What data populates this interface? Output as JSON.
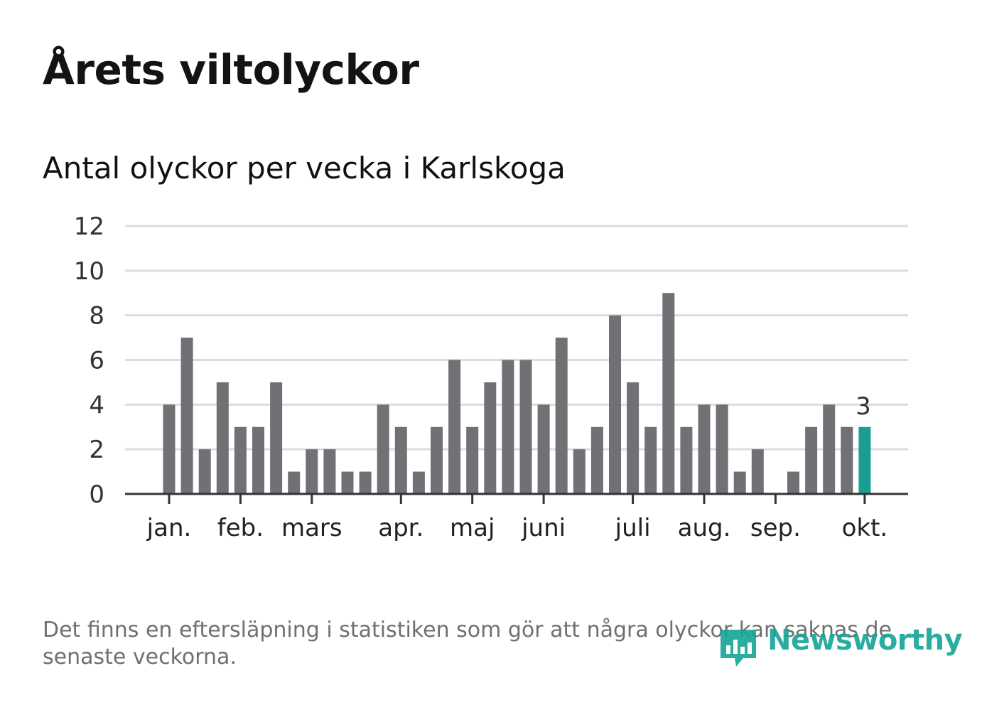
{
  "header": {
    "title": "Årets viltolyckor",
    "subtitle": "Antal olyckor per vecka i Karlskoga"
  },
  "footer": {
    "note": "Det finns en eftersläpning i statistiken som gör att några olyckor kan saknas de senaste veckorna.",
    "logo_text": "Newsworthy"
  },
  "colors": {
    "bar": "#707075",
    "highlight": "#1a9e94",
    "grid": "#dcdcdc",
    "axis": "#333333",
    "logo": "#14a596"
  },
  "chart_data": {
    "type": "bar",
    "title": "Antal olyckor per vecka i Karlskoga",
    "xlabel": "",
    "ylabel": "",
    "ylim": [
      0,
      12
    ],
    "yticks": [
      0,
      2,
      4,
      6,
      8,
      10,
      12
    ],
    "grid": true,
    "weeks": [
      1,
      2,
      3,
      4,
      5,
      6,
      7,
      8,
      9,
      10,
      11,
      12,
      13,
      14,
      15,
      16,
      17,
      18,
      19,
      20,
      21,
      22,
      23,
      24,
      25,
      26,
      27,
      28,
      29,
      30,
      31,
      32,
      33,
      34,
      35,
      36,
      37,
      38,
      39,
      40
    ],
    "values": [
      4,
      7,
      2,
      5,
      3,
      3,
      5,
      1,
      2,
      2,
      1,
      1,
      4,
      3,
      1,
      3,
      6,
      3,
      5,
      6,
      6,
      4,
      7,
      2,
      3,
      8,
      5,
      3,
      9,
      3,
      4,
      4,
      1,
      2,
      0,
      1,
      3,
      4,
      3,
      3
    ],
    "highlight_index": 39,
    "highlight_label": "3",
    "month_labels": [
      {
        "label": "jan.",
        "week": 1
      },
      {
        "label": "feb.",
        "week": 5
      },
      {
        "label": "mars",
        "week": 9
      },
      {
        "label": "apr.",
        "week": 14
      },
      {
        "label": "maj",
        "week": 18
      },
      {
        "label": "juni",
        "week": 22
      },
      {
        "label": "juli",
        "week": 27
      },
      {
        "label": "aug.",
        "week": 31
      },
      {
        "label": "sep.",
        "week": 35
      },
      {
        "label": "okt.",
        "week": 40
      }
    ]
  }
}
